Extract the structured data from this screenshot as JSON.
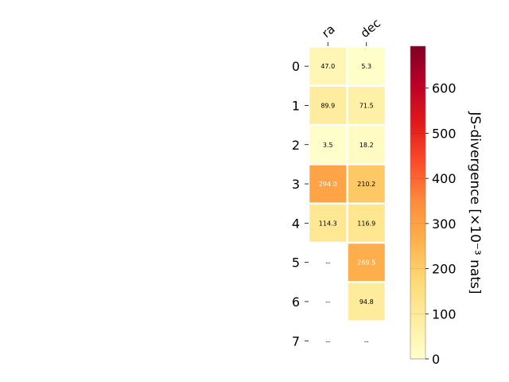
{
  "chart_data": {
    "type": "heatmap",
    "columns": [
      "ra",
      "dec"
    ],
    "rows": [
      "0",
      "1",
      "2",
      "3",
      "4",
      "5",
      "6",
      "7"
    ],
    "values": [
      [
        47.0,
        5.3
      ],
      [
        89.9,
        71.5
      ],
      [
        3.5,
        18.2
      ],
      [
        294.0,
        210.2
      ],
      [
        114.3,
        116.9
      ],
      [
        null,
        269.5
      ],
      [
        null,
        94.8
      ],
      [
        null,
        null
      ]
    ],
    "labels": [
      [
        "47.0",
        "5.3"
      ],
      [
        "89.9",
        "71.5"
      ],
      [
        "3.5",
        "18.2"
      ],
      [
        "294.0",
        "210.2"
      ],
      [
        "114.3",
        "116.9"
      ],
      [
        "--",
        "269.5"
      ],
      [
        "--",
        "94.8"
      ],
      [
        "--",
        "--"
      ]
    ],
    "colorbar": {
      "label": "JS-divergence [×10⁻³ nats]",
      "ticks": [
        "0",
        "100",
        "200",
        "300",
        "400",
        "500",
        "600"
      ],
      "tick_values": [
        0,
        100,
        200,
        300,
        400,
        500,
        600
      ],
      "range": [
        0,
        693
      ],
      "colormap": "YlOrRd"
    }
  }
}
